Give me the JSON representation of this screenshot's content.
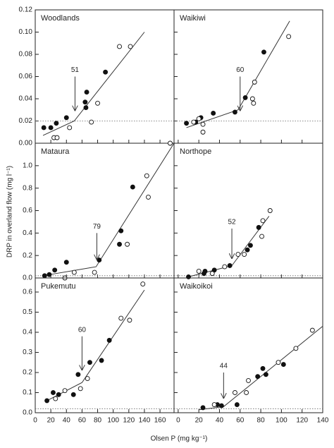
{
  "shared": {
    "x_label": "Olsen P (mg kg⁻¹)",
    "y_label": "DRP in overland flow (mg l⁻¹)"
  },
  "chart_data": [
    {
      "type": "scatter",
      "title": "Woodlands",
      "xlim": [
        0,
        178
      ],
      "xticks": [
        0,
        20,
        40,
        60,
        80,
        100,
        120,
        140,
        160
      ],
      "ylim": [
        0,
        0.12
      ],
      "yticks": [
        {
          "value": 0,
          "label": "0.00"
        },
        0.02,
        0.04,
        0.06,
        0.08,
        {
          "value": 0.1,
          "label": "0.10"
        },
        0.12
      ],
      "tick_labels": {
        "x": false,
        "y": true
      },
      "threshold": 0.02,
      "series": [
        {
          "filled": true,
          "color": "#111",
          "x": [
            11,
            20,
            27,
            40,
            64,
            66,
            65,
            90
          ],
          "values": [
            0.014,
            0.014,
            0.018,
            0.023,
            0.037,
            0.046,
            0.032,
            0.064
          ]
        },
        {
          "filled": false,
          "color": "#111",
          "x": [
            24,
            28,
            44,
            72,
            80,
            108,
            122
          ],
          "values": [
            0.005,
            0.005,
            0.014,
            0.019,
            0.036,
            0.087,
            0.087
          ]
        }
      ],
      "fit": {
        "x": [
          10,
          50,
          140
        ],
        "values": [
          0.007,
          0.02,
          0.1
        ]
      },
      "arrow": {
        "label": "51",
        "x": 51,
        "y_top": 0.06,
        "y_tip": 0.029
      }
    },
    {
      "type": "scatter",
      "title": "Waikiwi",
      "xlim": [
        -4,
        140
      ],
      "xticks": [
        0,
        20,
        40,
        60,
        80,
        100,
        120,
        140
      ],
      "ylim": [
        0,
        0.12
      ],
      "yticks": [
        0,
        0.02,
        0.04,
        0.06,
        0.08,
        0.1,
        0.12
      ],
      "tick_labels": {
        "x": false,
        "y": false
      },
      "threshold": 0.02,
      "series": [
        {
          "filled": true,
          "color": "#111",
          "x": [
            8,
            17,
            22,
            34,
            55,
            65,
            83
          ],
          "values": [
            0.018,
            0.019,
            0.023,
            0.027,
            0.028,
            0.041,
            0.082
          ]
        },
        {
          "filled": false,
          "color": "#111",
          "x": [
            15,
            20,
            24,
            24,
            72,
            73,
            74,
            107
          ],
          "values": [
            0.019,
            0.022,
            0.01,
            0.017,
            0.04,
            0.036,
            0.055,
            0.096
          ]
        }
      ],
      "fit": {
        "x": [
          8,
          58,
          108
        ],
        "values": [
          0.014,
          0.03,
          0.11
        ]
      },
      "arrow": {
        "label": "60",
        "x": 60,
        "y_top": 0.06,
        "y_tip": 0.029
      }
    },
    {
      "type": "scatter",
      "title": "Mataura",
      "xlim": [
        0,
        178
      ],
      "xticks": [
        0,
        20,
        40,
        60,
        80,
        100,
        120,
        140,
        160
      ],
      "ylim": [
        0,
        1.2
      ],
      "yticks": [
        {
          "value": 0,
          "label": "0.0"
        },
        0.2,
        0.4,
        0.6,
        0.8,
        {
          "value": 1,
          "label": "1.0"
        }
      ],
      "tick_labels": {
        "x": false,
        "y": true
      },
      "threshold": 0.02,
      "series": [
        {
          "filled": true,
          "color": "#111",
          "x": [
            12,
            18,
            25,
            40,
            82,
            108,
            110,
            125
          ],
          "values": [
            0.02,
            0.03,
            0.07,
            0.14,
            0.16,
            0.3,
            0.42,
            0.81
          ]
        },
        {
          "filled": false,
          "color": "#111",
          "x": [
            38,
            50,
            76,
            118,
            143,
            145,
            173
          ],
          "values": [
            0.0,
            0.05,
            0.05,
            0.3,
            0.91,
            0.72,
            1.2
          ]
        }
      ],
      "fit": {
        "x": [
          10,
          78,
          178
        ],
        "values": [
          0.02,
          0.1,
          1.2
        ]
      },
      "arrow": {
        "label": "79",
        "x": 79,
        "y_top": 0.4,
        "y_tip": 0.16
      }
    },
    {
      "type": "scatter",
      "title": "Northope",
      "xlim": [
        -4,
        140
      ],
      "xticks": [
        0,
        20,
        40,
        60,
        80,
        100,
        120,
        140
      ],
      "ylim": [
        0,
        1.2
      ],
      "yticks": [
        0,
        0.2,
        0.4,
        0.6,
        0.8,
        1
      ],
      "tick_labels": {
        "x": false,
        "y": false
      },
      "threshold": 0.02,
      "series": [
        {
          "filled": true,
          "color": "#111",
          "x": [
            10,
            25,
            26,
            35,
            50,
            67,
            70,
            78
          ],
          "values": [
            0.01,
            0.04,
            0.06,
            0.07,
            0.11,
            0.25,
            0.29,
            0.45
          ]
        },
        {
          "filled": false,
          "color": "#111",
          "x": [
            20,
            33,
            45,
            58,
            64,
            82,
            81,
            89
          ],
          "values": [
            0.06,
            0.04,
            0.1,
            0.21,
            0.21,
            0.51,
            0.37,
            0.6
          ]
        }
      ],
      "fit": {
        "x": [
          10,
          52,
          88
        ],
        "values": [
          0.01,
          0.11,
          0.55
        ]
      },
      "arrow": {
        "label": "52",
        "x": 52,
        "y_top": 0.44,
        "y_tip": 0.17
      }
    },
    {
      "type": "scatter",
      "title": "Pukemutu",
      "xlim": [
        0,
        178
      ],
      "xticks": [
        0,
        20,
        40,
        60,
        80,
        100,
        120,
        140,
        160
      ],
      "ylim": [
        0,
        0.67
      ],
      "yticks": [
        {
          "value": 0,
          "label": "0.0"
        },
        0.1,
        0.2,
        0.3,
        0.4,
        0.5,
        0.6
      ],
      "tick_labels": {
        "x": true,
        "y": true
      },
      "threshold": 0.02,
      "series": [
        {
          "filled": true,
          "color": "#111",
          "x": [
            15,
            23,
            30,
            49,
            55,
            70,
            85,
            95
          ],
          "values": [
            0.06,
            0.1,
            0.09,
            0.09,
            0.19,
            0.25,
            0.26,
            0.36
          ]
        },
        {
          "filled": false,
          "color": "#111",
          "x": [
            26,
            38,
            58,
            67,
            110,
            121,
            138
          ],
          "values": [
            0.07,
            0.11,
            0.12,
            0.17,
            0.47,
            0.46,
            0.64
          ]
        }
      ],
      "fit": {
        "x": [
          15,
          60,
          140
        ],
        "values": [
          0.06,
          0.15,
          0.61
        ]
      },
      "arrow": {
        "label": "60",
        "x": 60,
        "y_top": 0.38,
        "y_tip": 0.21
      }
    },
    {
      "type": "scatter",
      "title": "Waikoikoi",
      "xlim": [
        -4,
        140
      ],
      "xticks": [
        0,
        20,
        40,
        60,
        80,
        100,
        120,
        140
      ],
      "ylim": [
        0,
        0.67
      ],
      "yticks": [
        0,
        0.1,
        0.2,
        0.3,
        0.4,
        0.5,
        0.6
      ],
      "tick_labels": {
        "x": true,
        "y": false
      },
      "threshold": 0.02,
      "series": [
        {
          "filled": true,
          "color": "#111",
          "x": [
            24,
            38,
            42,
            57,
            77,
            82,
            85,
            102
          ],
          "values": [
            0.025,
            0.04,
            0.035,
            0.04,
            0.18,
            0.22,
            0.19,
            0.24
          ]
        },
        {
          "filled": false,
          "color": "#111",
          "x": [
            35,
            55,
            66,
            68,
            97,
            114,
            130
          ],
          "values": [
            0.04,
            0.1,
            0.1,
            0.16,
            0.25,
            0.32,
            0.41
          ]
        }
      ],
      "fit": {
        "x": [
          20,
          44,
          140
        ],
        "values": [
          0.015,
          0.03,
          0.43
        ]
      },
      "arrow": {
        "label": "44",
        "x": 44,
        "y_top": 0.2,
        "y_tip": 0.07
      }
    }
  ]
}
